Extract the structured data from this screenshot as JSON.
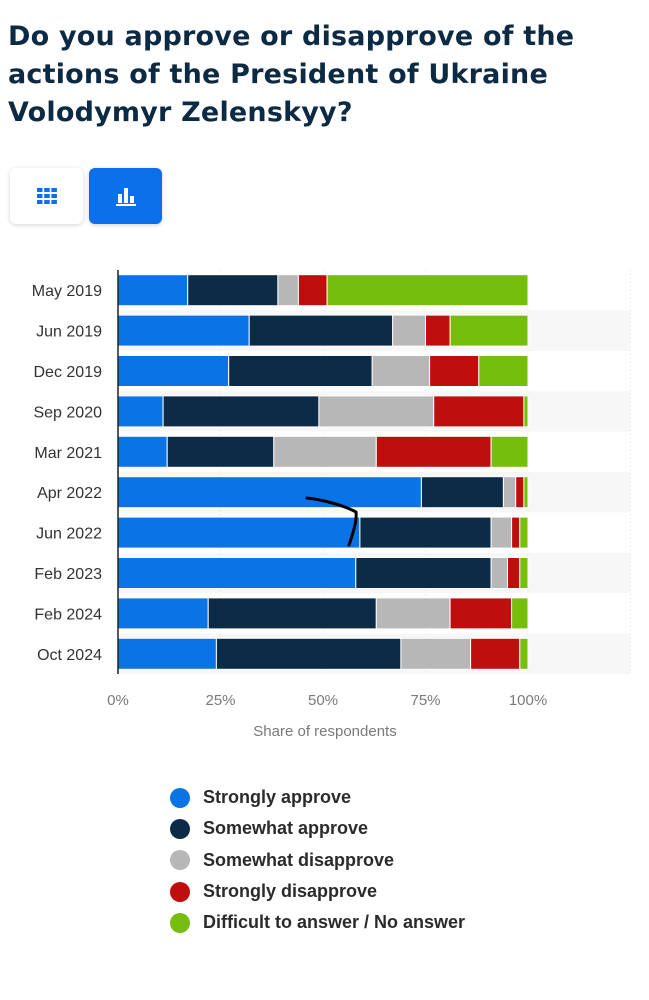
{
  "title": "Do you approve or disapprove of the actions of the President of Ukraine Volodymyr Zelenskyy?",
  "view_toggle": {
    "table_icon": "table-grid-icon",
    "chart_icon": "bar-chart-icon",
    "active": "chart"
  },
  "chart_data": {
    "type": "bar",
    "orientation": "horizontal",
    "stacked": true,
    "categories": [
      "May 2019",
      "Jun 2019",
      "Dec 2019",
      "Sep 2020",
      "Mar 2021",
      "Apr 2022",
      "Jun 2022",
      "Feb 2023",
      "Feb 2024",
      "Oct 2024"
    ],
    "series": [
      {
        "name": "Strongly approve",
        "color": "#0a74e6",
        "values": [
          17,
          32,
          27,
          11,
          12,
          74,
          59,
          58,
          22,
          24
        ]
      },
      {
        "name": "Somewhat approve",
        "color": "#0c2b46",
        "values": [
          22,
          35,
          35,
          38,
          26,
          20,
          32,
          33,
          41,
          45
        ]
      },
      {
        "name": "Somewhat disapprove",
        "color": "#b7b7b7",
        "values": [
          5,
          8,
          14,
          28,
          25,
          3,
          5,
          4,
          18,
          17
        ]
      },
      {
        "name": "Strongly disapprove",
        "color": "#be0e0e",
        "values": [
          7,
          6,
          12,
          22,
          28,
          2,
          2,
          3,
          15,
          12
        ]
      },
      {
        "name": "Difficult to answer / No answer",
        "color": "#75be0e",
        "values": [
          49,
          19,
          12,
          1,
          9,
          1,
          2,
          2,
          4,
          2
        ]
      }
    ],
    "xlabel": "Share of respondents",
    "ylabel": "",
    "xlim": [
      0,
      125
    ],
    "xticks": [
      0,
      25,
      50,
      75,
      100
    ],
    "xtick_labels": [
      "0%",
      "25%",
      "50%",
      "75%",
      "100%"
    ],
    "grid": true,
    "legend_position": "bottom"
  }
}
